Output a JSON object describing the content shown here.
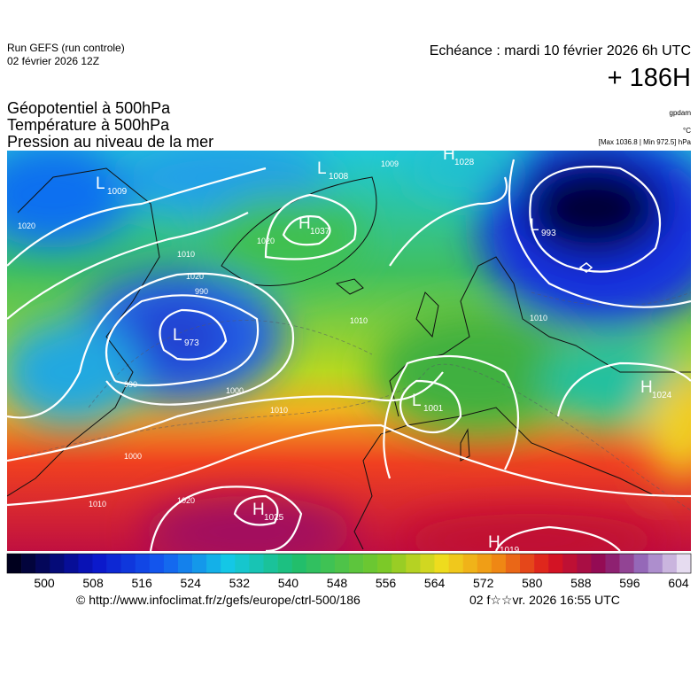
{
  "header": {
    "run": "Run GEFS (run controle)",
    "run_date": "02 février 2026 12Z",
    "valid": "Echéance : mardi 10 février 2026 6h UTC",
    "lead": "+ 186H",
    "titles": [
      "Géopotentiel à 500hPa",
      "Température à 500hPa",
      "Pression au niveau de la mer"
    ],
    "units": [
      "gpdam",
      "°C",
      "[Max 1036.8 | Min 972.5] hPa"
    ]
  },
  "map": {
    "centers": [
      {
        "kind": "L",
        "value": 1009
      },
      {
        "kind": "L",
        "value": 1008
      },
      {
        "kind": "H",
        "value": 1028
      },
      {
        "kind": "H",
        "value": 1037
      },
      {
        "kind": "L",
        "value": 993
      },
      {
        "kind": "L",
        "value": 973
      },
      {
        "kind": "L",
        "value": 1001
      },
      {
        "kind": "H",
        "value": 1024
      },
      {
        "kind": "H",
        "value": 1025
      },
      {
        "kind": "H",
        "value": 1019
      }
    ],
    "isobar_labels": [
      1009,
      1020,
      1010,
      1020,
      990,
      990,
      1000,
      1010,
      1020,
      1010,
      1000,
      1010,
      1020,
      1010
    ]
  },
  "legend": {
    "ticks": [
      500,
      508,
      516,
      524,
      532,
      540,
      548,
      556,
      564,
      572,
      580,
      588,
      596,
      604
    ]
  },
  "footer": {
    "url": "© http://www.infoclimat.fr/z/gefs/europe/ctrl-500/186",
    "stamp": "02 f☆☆vr. 2026 16:55 UTC"
  }
}
